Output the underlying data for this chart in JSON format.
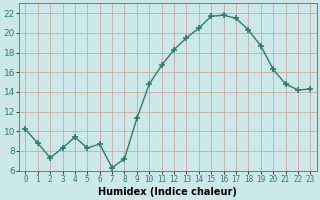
{
  "x": [
    0,
    1,
    2,
    3,
    4,
    5,
    6,
    7,
    8,
    9,
    10,
    11,
    12,
    13,
    14,
    15,
    16,
    17,
    18,
    19,
    20,
    21,
    22,
    23
  ],
  "y": [
    10.2,
    8.8,
    7.3,
    8.3,
    9.4,
    8.3,
    8.7,
    6.3,
    7.2,
    11.3,
    14.8,
    16.7,
    18.3,
    19.5,
    20.5,
    21.7,
    21.8,
    21.5,
    20.3,
    18.7,
    16.3,
    14.8,
    14.2,
    14.3
  ],
  "line_color": "#2d7d6e",
  "marker": "+",
  "marker_size": 4,
  "bg_color": "#cce8e8",
  "grid_color": "#b0c8c8",
  "xlabel": "Humidex (Indice chaleur)",
  "xlabel_fontsize": 7,
  "ylim": [
    6,
    23
  ],
  "xlim": [
    -0.5,
    23.5
  ],
  "yticks": [
    6,
    8,
    10,
    12,
    14,
    16,
    18,
    20,
    22
  ],
  "xtick_fontsize": 5.5,
  "ytick_fontsize": 6.5
}
